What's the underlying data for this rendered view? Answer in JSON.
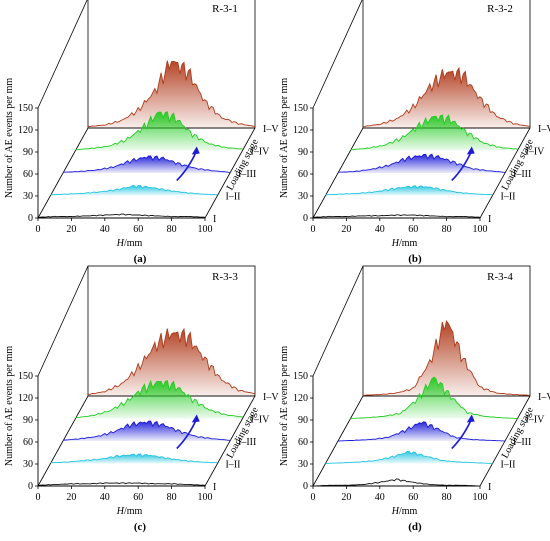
{
  "figure": {
    "ylabel": "Number of AE events per mm",
    "xlabel_italic": "H",
    "xlabel_unit": "/mm",
    "zlabel": "Loading stage",
    "yticks": [
      "0",
      "30",
      "60",
      "90",
      "120",
      "150"
    ],
    "xticks": [
      "0",
      "20",
      "40",
      "60",
      "80",
      "100"
    ]
  },
  "colors": {
    "I": "#111111",
    "I-II": "#22c4e0",
    "I-III": "#1a1ad8",
    "I-IV": "#22cc22",
    "I-V": "#b03a1a",
    "arrow": "#1a1ad8"
  },
  "chart_data": [
    {
      "type": "area",
      "title": "R-3-1",
      "panel_label": "(a)",
      "xlabel": "H/mm",
      "ylabel": "Number of AE events per mm",
      "zlabel": "Loading stage",
      "xlim": [
        0,
        100
      ],
      "ylim": [
        0,
        150
      ],
      "stages": [
        "I",
        "I–II",
        "I–III",
        "I–IV",
        "I–V"
      ],
      "series": [
        {
          "name": "I",
          "x": [
            0,
            10,
            20,
            30,
            40,
            50,
            60,
            70,
            80,
            90,
            100
          ],
          "values": [
            1,
            2,
            2,
            3,
            4,
            5,
            4,
            3,
            2,
            2,
            1
          ]
        },
        {
          "name": "I–II",
          "x": [
            0,
            10,
            20,
            30,
            40,
            50,
            60,
            70,
            80,
            90,
            100
          ],
          "values": [
            1,
            2,
            3,
            5,
            8,
            13,
            11,
            7,
            4,
            2,
            1
          ]
        },
        {
          "name": "I–III",
          "x": [
            0,
            10,
            20,
            30,
            40,
            50,
            60,
            70,
            80,
            90,
            100
          ],
          "values": [
            1,
            2,
            4,
            8,
            16,
            22,
            20,
            12,
            6,
            3,
            1
          ]
        },
        {
          "name": "I–IV",
          "x": [
            0,
            10,
            20,
            30,
            40,
            50,
            60,
            70,
            80,
            90,
            100
          ],
          "values": [
            1,
            3,
            6,
            14,
            30,
            52,
            44,
            22,
            9,
            4,
            2
          ]
        },
        {
          "name": "I–V",
          "x": [
            0,
            10,
            20,
            30,
            40,
            50,
            60,
            70,
            80,
            90,
            100
          ],
          "values": [
            2,
            4,
            10,
            24,
            50,
            92,
            76,
            36,
            14,
            6,
            2
          ]
        }
      ]
    },
    {
      "type": "area",
      "title": "R-3-2",
      "panel_label": "(b)",
      "xlabel": "H/mm",
      "ylabel": "Number of AE events per mm",
      "zlabel": "Loading stage",
      "xlim": [
        0,
        100
      ],
      "ylim": [
        0,
        150
      ],
      "stages": [
        "I",
        "I–II",
        "I–III",
        "I–IV",
        "I–V"
      ],
      "series": [
        {
          "name": "I",
          "x": [
            0,
            10,
            20,
            30,
            40,
            50,
            60,
            70,
            80,
            90,
            100
          ],
          "values": [
            1,
            2,
            2,
            3,
            3,
            4,
            4,
            3,
            2,
            2,
            1
          ]
        },
        {
          "name": "I–II",
          "x": [
            0,
            10,
            20,
            30,
            40,
            50,
            60,
            70,
            80,
            90,
            100
          ],
          "values": [
            1,
            2,
            3,
            5,
            9,
            12,
            12,
            8,
            4,
            2,
            1
          ]
        },
        {
          "name": "I–III",
          "x": [
            0,
            10,
            20,
            30,
            40,
            50,
            60,
            70,
            80,
            90,
            100
          ],
          "values": [
            1,
            2,
            5,
            10,
            19,
            24,
            22,
            14,
            6,
            3,
            1
          ]
        },
        {
          "name": "I–IV",
          "x": [
            0,
            10,
            20,
            30,
            40,
            50,
            60,
            70,
            80,
            90,
            100
          ],
          "values": [
            1,
            3,
            7,
            16,
            32,
            46,
            42,
            24,
            10,
            4,
            2
          ]
        },
        {
          "name": "I–V",
          "x": [
            0,
            10,
            20,
            30,
            40,
            50,
            60,
            70,
            80,
            90,
            100
          ],
          "values": [
            2,
            5,
            12,
            28,
            56,
            76,
            72,
            40,
            16,
            6,
            2
          ]
        }
      ]
    },
    {
      "type": "area",
      "title": "R-3-3",
      "panel_label": "(c)",
      "xlabel": "H/mm",
      "ylabel": "Number of AE events per mm",
      "zlabel": "Loading stage",
      "xlim": [
        0,
        100
      ],
      "ylim": [
        0,
        150
      ],
      "stages": [
        "I",
        "I–II",
        "I–III",
        "I–IV",
        "I–V"
      ],
      "series": [
        {
          "name": "I",
          "x": [
            0,
            10,
            20,
            30,
            40,
            50,
            60,
            70,
            80,
            90,
            100
          ],
          "values": [
            1,
            2,
            3,
            3,
            4,
            4,
            4,
            3,
            3,
            2,
            1
          ]
        },
        {
          "name": "I–II",
          "x": [
            0,
            10,
            20,
            30,
            40,
            50,
            60,
            70,
            80,
            90,
            100
          ],
          "values": [
            1,
            2,
            4,
            6,
            10,
            12,
            11,
            7,
            4,
            2,
            1
          ]
        },
        {
          "name": "I–III",
          "x": [
            0,
            10,
            20,
            30,
            40,
            50,
            60,
            70,
            80,
            90,
            100
          ],
          "values": [
            1,
            3,
            6,
            12,
            22,
            26,
            22,
            13,
            6,
            3,
            1
          ]
        },
        {
          "name": "I–IV",
          "x": [
            0,
            10,
            20,
            30,
            40,
            50,
            60,
            70,
            80,
            90,
            100
          ],
          "values": [
            1,
            4,
            10,
            22,
            40,
            50,
            44,
            26,
            12,
            5,
            2
          ]
        },
        {
          "name": "I–V",
          "x": [
            0,
            10,
            20,
            30,
            40,
            50,
            60,
            70,
            80,
            90,
            100
          ],
          "values": [
            2,
            6,
            16,
            38,
            68,
            86,
            80,
            50,
            22,
            8,
            3
          ]
        }
      ]
    },
    {
      "type": "area",
      "title": "R-3-4",
      "panel_label": "(d)",
      "xlabel": "H/mm",
      "ylabel": "Number of AE events per mm",
      "zlabel": "Loading stage",
      "xlim": [
        0,
        100
      ],
      "ylim": [
        0,
        150
      ],
      "stages": [
        "I",
        "I–II",
        "I–III",
        "I–IV",
        "I–V"
      ],
      "series": [
        {
          "name": "I",
          "x": [
            0,
            10,
            20,
            30,
            40,
            50,
            60,
            70,
            80,
            90,
            100
          ],
          "values": [
            0,
            1,
            1,
            2,
            5,
            9,
            5,
            2,
            1,
            1,
            0
          ]
        },
        {
          "name": "I–II",
          "x": [
            0,
            10,
            20,
            30,
            40,
            50,
            60,
            70,
            80,
            90,
            100
          ],
          "values": [
            0,
            1,
            2,
            4,
            9,
            16,
            10,
            4,
            2,
            1,
            0
          ]
        },
        {
          "name": "I–III",
          "x": [
            0,
            10,
            20,
            30,
            40,
            50,
            60,
            70,
            80,
            90,
            100
          ],
          "values": [
            0,
            1,
            2,
            5,
            14,
            26,
            16,
            5,
            2,
            1,
            0
          ]
        },
        {
          "name": "I–IV",
          "x": [
            0,
            10,
            20,
            30,
            40,
            50,
            60,
            70,
            80,
            90,
            100
          ],
          "values": [
            0,
            1,
            3,
            7,
            26,
            56,
            30,
            8,
            3,
            1,
            0
          ]
        },
        {
          "name": "I–V",
          "x": [
            0,
            10,
            20,
            30,
            40,
            50,
            60,
            70,
            80,
            90,
            100
          ],
          "values": [
            1,
            2,
            4,
            10,
            46,
            104,
            50,
            12,
            4,
            2,
            1
          ]
        }
      ]
    }
  ]
}
